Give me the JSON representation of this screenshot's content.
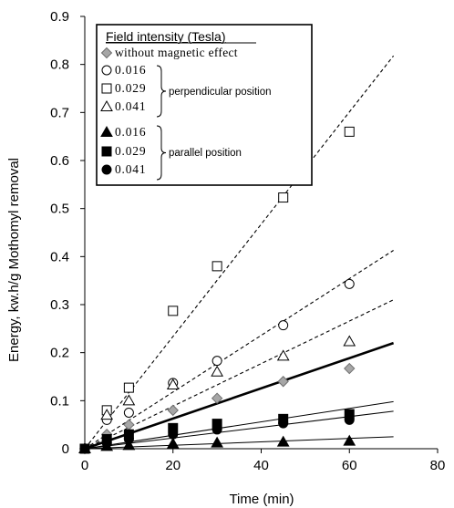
{
  "chart_data": {
    "type": "scatter",
    "xlabel": "Time (min)",
    "ylabel": "Energy, kw.h/g Mothomyl removal",
    "xlim": [
      0,
      80
    ],
    "ylim": [
      0,
      0.9
    ],
    "xticks": [
      0,
      20,
      40,
      60,
      80
    ],
    "yticks": [
      0,
      0.1,
      0.2,
      0.3,
      0.4,
      0.5,
      0.6,
      0.7,
      0.8,
      0.9
    ],
    "xtick_labels": [
      "0",
      "20",
      "40",
      "60",
      "80"
    ],
    "ytick_labels": [
      "0",
      "0.1",
      "0.2",
      "0.3",
      "0.4",
      "0.5",
      "0.6",
      "0.7",
      "0.8",
      "0.9"
    ],
    "grid": false,
    "legend_position": "top-left",
    "legend": {
      "title": "Field intensity (Tesla)",
      "entries": [
        {
          "label": "without magnetic effect",
          "marker": "diamond",
          "fill": "#a6a6a6"
        },
        {
          "label": "0.016",
          "marker": "circle",
          "fill": "#ffffff"
        },
        {
          "label": "0.029",
          "marker": "square",
          "fill": "#ffffff"
        },
        {
          "label": "0.041",
          "marker": "triangle",
          "fill": "#ffffff"
        },
        {
          "label": "0.016",
          "marker": "triangle",
          "fill": "#000000"
        },
        {
          "label": "0.029",
          "marker": "square",
          "fill": "#000000"
        },
        {
          "label": "0.041",
          "marker": "circle",
          "fill": "#000000"
        }
      ],
      "group_labels": [
        "perpendicular position",
        "parallel position"
      ]
    },
    "series": [
      {
        "name": "without magnetic effect",
        "marker": "diamond",
        "fill": "#a6a6a6",
        "x": [
          0,
          5,
          10,
          20,
          30,
          45,
          60
        ],
        "y": [
          0,
          0.03,
          0.05,
          0.08,
          0.105,
          0.14,
          0.167
        ],
        "trend_end": [
          70,
          0.22
        ],
        "trend_style": "thick"
      },
      {
        "name": "0.016",
        "marker": "circle",
        "fill": "#ffffff",
        "x": [
          0,
          5,
          10,
          20,
          30,
          45,
          60
        ],
        "y": [
          0,
          0.06,
          0.075,
          0.137,
          0.183,
          0.257,
          0.343
        ],
        "trend_end": [
          70,
          0.413
        ],
        "trend_style": "dashed"
      },
      {
        "name": "0.029",
        "marker": "square",
        "fill": "#ffffff",
        "x": [
          0,
          5,
          10,
          20,
          30,
          45,
          60
        ],
        "y": [
          0,
          0.08,
          0.127,
          0.287,
          0.38,
          0.523,
          0.66
        ],
        "trend_end": [
          70,
          0.818
        ],
        "trend_style": "dashed"
      },
      {
        "name": "0.041",
        "marker": "triangle",
        "fill": "#ffffff",
        "x": [
          0,
          5,
          10,
          20,
          30,
          45,
          60
        ],
        "y": [
          0,
          0.07,
          0.1,
          0.133,
          0.16,
          0.193,
          0.223
        ],
        "trend_end": [
          70,
          0.31
        ],
        "trend_style": "dashed"
      },
      {
        "name": "0.016",
        "marker": "triangle",
        "fill": "#000000",
        "x": [
          0,
          5,
          10,
          20,
          30,
          45,
          60
        ],
        "y": [
          0,
          0.005,
          0.007,
          0.01,
          0.012,
          0.014,
          0.016
        ],
        "trend_end": [
          70,
          0.025
        ],
        "trend_style": "thin"
      },
      {
        "name": "0.029",
        "marker": "square",
        "fill": "#000000",
        "x": [
          0,
          5,
          10,
          20,
          30,
          45,
          60
        ],
        "y": [
          0,
          0.02,
          0.03,
          0.043,
          0.052,
          0.062,
          0.072
        ],
        "trend_end": [
          70,
          0.098
        ],
        "trend_style": "thin"
      },
      {
        "name": "0.041",
        "marker": "circle",
        "fill": "#000000",
        "x": [
          0,
          5,
          10,
          20,
          30,
          45,
          60
        ],
        "y": [
          0,
          0.012,
          0.02,
          0.03,
          0.04,
          0.053,
          0.06
        ],
        "trend_end": [
          70,
          0.078
        ],
        "trend_style": "thin"
      }
    ]
  }
}
